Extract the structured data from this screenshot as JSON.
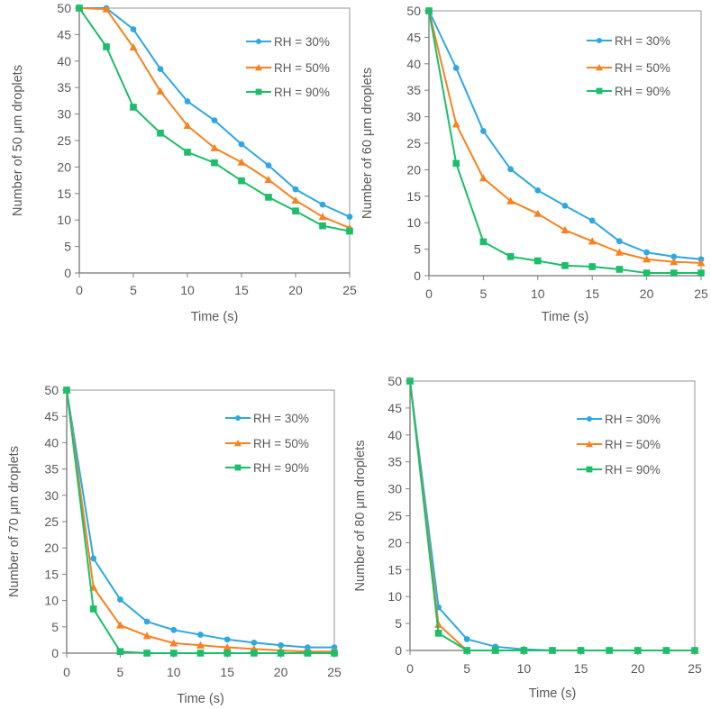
{
  "chart_data": [
    {
      "type": "line",
      "title": "",
      "xlabel": "Time (s)",
      "ylabel": "Number of 50 μm droplets",
      "xlim": [
        0,
        25
      ],
      "ylim": [
        0,
        50
      ],
      "xticks": [
        "0",
        "5",
        "10",
        "15",
        "20",
        "25"
      ],
      "yticks": [
        "0",
        "5",
        "10",
        "15",
        "20",
        "25",
        "30",
        "35",
        "40",
        "45",
        "50"
      ],
      "legend_position": "top-right",
      "x": [
        0,
        2.5,
        5,
        7.5,
        10,
        12.5,
        15,
        17.5,
        20,
        22.5,
        25
      ],
      "series": [
        {
          "name": "RH = 30%",
          "marker": "circle",
          "color": "#2EA8E0",
          "values": [
            50,
            50,
            46,
            38.5,
            32.4,
            28.8,
            24.3,
            20.3,
            15.8,
            12.9,
            10.6
          ]
        },
        {
          "name": "RH = 50%",
          "marker": "triangle",
          "color": "#F7821F",
          "values": [
            50,
            49.8,
            42.6,
            34.3,
            27.8,
            23.6,
            20.9,
            17.6,
            13.7,
            10.6,
            8.5
          ]
        },
        {
          "name": "RH = 90%",
          "marker": "square",
          "color": "#1CBE6A",
          "values": [
            50,
            42.7,
            31.3,
            26.4,
            22.8,
            20.8,
            17.4,
            14.3,
            11.7,
            8.9,
            7.9
          ]
        }
      ]
    },
    {
      "type": "line",
      "title": "",
      "xlabel": "Time (s)",
      "ylabel": "Number of 60 μm droplets",
      "xlim": [
        0,
        25
      ],
      "ylim": [
        0,
        50
      ],
      "xticks": [
        "0",
        "5",
        "10",
        "15",
        "20",
        "25"
      ],
      "yticks": [
        "0",
        "5",
        "10",
        "15",
        "20",
        "25",
        "30",
        "35",
        "40",
        "45",
        "50"
      ],
      "legend_position": "top-right",
      "x": [
        0,
        2.5,
        5,
        7.5,
        10,
        12.5,
        15,
        17.5,
        20,
        22.5,
        25
      ],
      "series": [
        {
          "name": "RH = 30%",
          "marker": "circle",
          "color": "#2EA8E0",
          "values": [
            50,
            39.2,
            27.3,
            20.1,
            16.1,
            13.2,
            10.4,
            6.5,
            4.4,
            3.6,
            3.1
          ]
        },
        {
          "name": "RH = 50%",
          "marker": "triangle",
          "color": "#F7821F",
          "values": [
            50,
            28.6,
            18.4,
            14.1,
            11.7,
            8.6,
            6.5,
            4.4,
            3.1,
            2.6,
            2.4
          ]
        },
        {
          "name": "RH = 90%",
          "marker": "square",
          "color": "#1CBE6A",
          "values": [
            50,
            21.2,
            6.4,
            3.6,
            2.8,
            1.9,
            1.7,
            1.2,
            0.5,
            0.5,
            0.5
          ]
        }
      ]
    },
    {
      "type": "line",
      "title": "",
      "xlabel": "Time (s)",
      "ylabel": "Number of 70 μm droplets",
      "xlim": [
        0,
        25
      ],
      "ylim": [
        0,
        50
      ],
      "xticks": [
        "0",
        "5",
        "10",
        "15",
        "20",
        "25"
      ],
      "yticks": [
        "0",
        "5",
        "10",
        "15",
        "20",
        "25",
        "30",
        "35",
        "40",
        "45",
        "50"
      ],
      "legend_position": "top-right",
      "x": [
        0,
        2.5,
        5,
        7.5,
        10,
        12.5,
        15,
        17.5,
        20,
        22.5,
        25
      ],
      "series": [
        {
          "name": "RH = 30%",
          "marker": "circle",
          "color": "#2EA8E0",
          "values": [
            50,
            18,
            10.2,
            6,
            4.4,
            3.5,
            2.6,
            2,
            1.5,
            1.1,
            1.1
          ]
        },
        {
          "name": "RH = 50%",
          "marker": "triangle",
          "color": "#F7821F",
          "values": [
            50,
            12.5,
            5.3,
            3.3,
            1.9,
            1.5,
            1.1,
            0.8,
            0.5,
            0.3,
            0.3
          ]
        },
        {
          "name": "RH = 90%",
          "marker": "square",
          "color": "#1CBE6A",
          "values": [
            50,
            8.4,
            0.3,
            0,
            0,
            0,
            0,
            0,
            0,
            0,
            0
          ]
        }
      ]
    },
    {
      "type": "line",
      "title": "",
      "xlabel": "Time (s)",
      "ylabel": "Number of 80 μm droplets",
      "xlim": [
        0,
        25
      ],
      "ylim": [
        0,
        50
      ],
      "xticks": [
        "0",
        "5",
        "10",
        "15",
        "20",
        "25"
      ],
      "yticks": [
        "0",
        "5",
        "10",
        "15",
        "20",
        "25",
        "30",
        "35",
        "40",
        "45",
        "50"
      ],
      "legend_position": "top-right",
      "x": [
        0,
        2.5,
        5,
        7.5,
        10,
        12.5,
        15,
        17.5,
        20,
        22.5,
        25
      ],
      "series": [
        {
          "name": "RH = 30%",
          "marker": "circle",
          "color": "#2EA8E0",
          "values": [
            50,
            8,
            2.1,
            0.7,
            0.2,
            0,
            0,
            0,
            0,
            0,
            0
          ]
        },
        {
          "name": "RH = 50%",
          "marker": "triangle",
          "color": "#F7821F",
          "values": [
            50,
            4.8,
            0,
            0,
            0,
            0,
            0,
            0,
            0,
            0,
            0
          ]
        },
        {
          "name": "RH = 90%",
          "marker": "square",
          "color": "#1CBE6A",
          "values": [
            50,
            3.2,
            0,
            0,
            0,
            0,
            0,
            0,
            0,
            0,
            0
          ]
        }
      ]
    }
  ]
}
